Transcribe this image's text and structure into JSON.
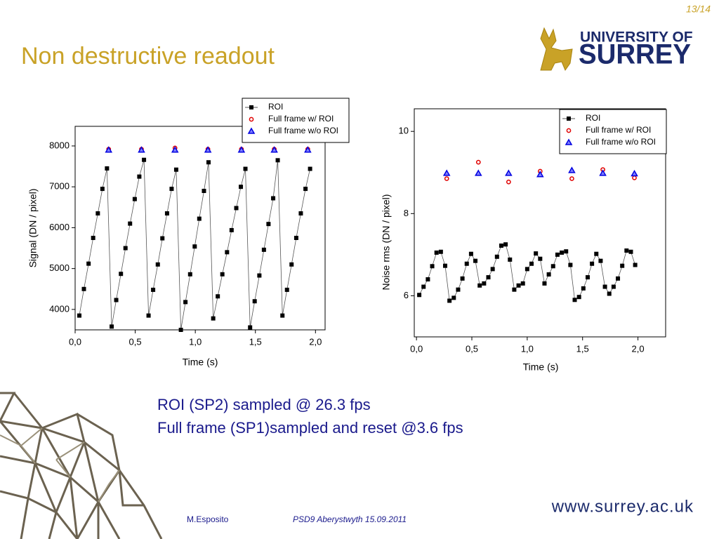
{
  "slide": {
    "page": "13/14",
    "title": "Non destructive readout",
    "logo": [
      "UNIVERSITY OF",
      "SURREY"
    ],
    "body": [
      "ROI (SP2) sampled @ 26.3 fps",
      "Full frame (SP1)sampled and reset @3.6 fps"
    ],
    "footer": {
      "author": "M.Esposito",
      "event": "PSD9 Aberystwyth 15.09.2011",
      "url": "www.surrey.ac.uk"
    }
  },
  "chart_data": [
    {
      "type": "scatter",
      "x_label": "Time (s)",
      "y_label": "Signal (DN / pixel)",
      "legend": "upper right",
      "xlim": [
        0,
        2.08
      ],
      "ylim": [
        3500,
        8480
      ],
      "xticks": [
        {
          "value": 0,
          "label": "0,0"
        },
        {
          "value": 0.5,
          "label": "0,5"
        },
        {
          "value": 1,
          "label": "1,0"
        },
        {
          "value": 1.5,
          "label": "1,5"
        },
        {
          "value": 2,
          "label": "2,0"
        }
      ],
      "yticks": [
        4000,
        5000,
        6000,
        7000,
        8000
      ],
      "series": [
        {
          "name": "ROI",
          "color": "#000000",
          "marker": "square",
          "line": true,
          "x": [
            0.035,
            0.073,
            0.112,
            0.15,
            0.189,
            0.227,
            0.265,
            0.304,
            0.342,
            0.381,
            0.419,
            0.457,
            0.496,
            0.534,
            0.573,
            0.611,
            0.649,
            0.688,
            0.726,
            0.765,
            0.803,
            0.841,
            0.88,
            0.918,
            0.957,
            0.995,
            1.033,
            1.072,
            1.11,
            1.149,
            1.187,
            1.225,
            1.264,
            1.302,
            1.341,
            1.379,
            1.417,
            1.456,
            1.494,
            1.533,
            1.571,
            1.609,
            1.648,
            1.686,
            1.725,
            1.763,
            1.801,
            1.84,
            1.878,
            1.917,
            1.955
          ],
          "values": [
            3850,
            4500,
            5120,
            5750,
            6350,
            6950,
            7450,
            3580,
            4230,
            4870,
            5500,
            6100,
            6700,
            7250,
            7660,
            3850,
            4480,
            5100,
            5740,
            6350,
            6950,
            7420,
            3500,
            4180,
            4860,
            5540,
            6220,
            6900,
            7600,
            3780,
            4320,
            4860,
            5400,
            5940,
            6480,
            7000,
            7440,
            3560,
            4200,
            4830,
            5460,
            6090,
            6720,
            7650,
            3850,
            4480,
            5100,
            5750,
            6350,
            6950,
            7440
          ]
        },
        {
          "name": "Full frame w/ ROI",
          "color": "#e00000",
          "marker": "circle",
          "line": false,
          "x": [
            0.279,
            0.552,
            0.831,
            1.105,
            1.384,
            1.657,
            1.936
          ],
          "values": [
            7920,
            7920,
            7950,
            7920,
            7920,
            7920,
            7920
          ]
        },
        {
          "name": "Full frame w/o ROI",
          "color": "#0000e0",
          "marker": "triangle",
          "line": false,
          "x": [
            0.279,
            0.552,
            0.831,
            1.105,
            1.384,
            1.657,
            1.936
          ],
          "values": [
            7900,
            7900,
            7900,
            7900,
            7900,
            7900,
            7900
          ]
        }
      ]
    },
    {
      "type": "scatter",
      "x_label": "Time (s)",
      "y_label": "Noise rms (DN / pixel)",
      "legend": "upper right",
      "xlim": [
        -0.02,
        2.25
      ],
      "ylim": [
        5,
        10.55
      ],
      "xticks": [
        {
          "value": 0,
          "label": "0,0"
        },
        {
          "value": 0.5,
          "label": "0,5"
        },
        {
          "value": 1,
          "label": "1,0"
        },
        {
          "value": 1.5,
          "label": "1,5"
        },
        {
          "value": 2,
          "label": "2,0"
        }
      ],
      "yticks": [
        6,
        8,
        10
      ],
      "series": [
        {
          "name": "ROI",
          "color": "#000000",
          "marker": "square",
          "line": true,
          "x": [
            0.025,
            0.064,
            0.103,
            0.142,
            0.181,
            0.22,
            0.259,
            0.298,
            0.337,
            0.376,
            0.415,
            0.454,
            0.493,
            0.532,
            0.571,
            0.61,
            0.649,
            0.688,
            0.727,
            0.766,
            0.805,
            0.844,
            0.883,
            0.922,
            0.961,
            1.0,
            1.039,
            1.078,
            1.117,
            1.156,
            1.195,
            1.234,
            1.273,
            1.312,
            1.351,
            1.39,
            1.429,
            1.468,
            1.507,
            1.546,
            1.585,
            1.624,
            1.663,
            1.702,
            1.741,
            1.78,
            1.819,
            1.858,
            1.897,
            1.936,
            1.975
          ],
          "values": [
            6.02,
            6.22,
            6.4,
            6.72,
            7.05,
            7.07,
            6.73,
            5.88,
            5.95,
            6.15,
            6.42,
            6.78,
            7.02,
            6.85,
            6.25,
            6.3,
            6.45,
            6.65,
            6.95,
            7.22,
            7.25,
            6.88,
            6.15,
            6.25,
            6.3,
            6.65,
            6.78,
            7.03,
            6.9,
            6.3,
            6.52,
            6.72,
            7.0,
            7.05,
            7.08,
            6.75,
            5.9,
            5.97,
            6.18,
            6.45,
            6.78,
            7.02,
            6.85,
            6.22,
            6.05,
            6.22,
            6.42,
            6.73,
            7.1,
            7.07,
            6.75
          ]
        },
        {
          "name": "Full frame w/ ROI",
          "color": "#e00000",
          "marker": "circle",
          "line": false,
          "x": [
            0.273,
            0.559,
            0.832,
            1.117,
            1.403,
            1.683,
            1.968
          ],
          "values": [
            8.85,
            9.25,
            8.77,
            9.03,
            8.85,
            9.07,
            8.87
          ]
        },
        {
          "name": "Full frame w/o ROI",
          "color": "#0000e0",
          "marker": "triangle",
          "line": false,
          "x": [
            0.273,
            0.559,
            0.832,
            1.117,
            1.403,
            1.683,
            1.968
          ],
          "values": [
            8.98,
            8.98,
            8.98,
            8.95,
            9.05,
            8.98,
            8.97
          ]
        }
      ]
    }
  ]
}
